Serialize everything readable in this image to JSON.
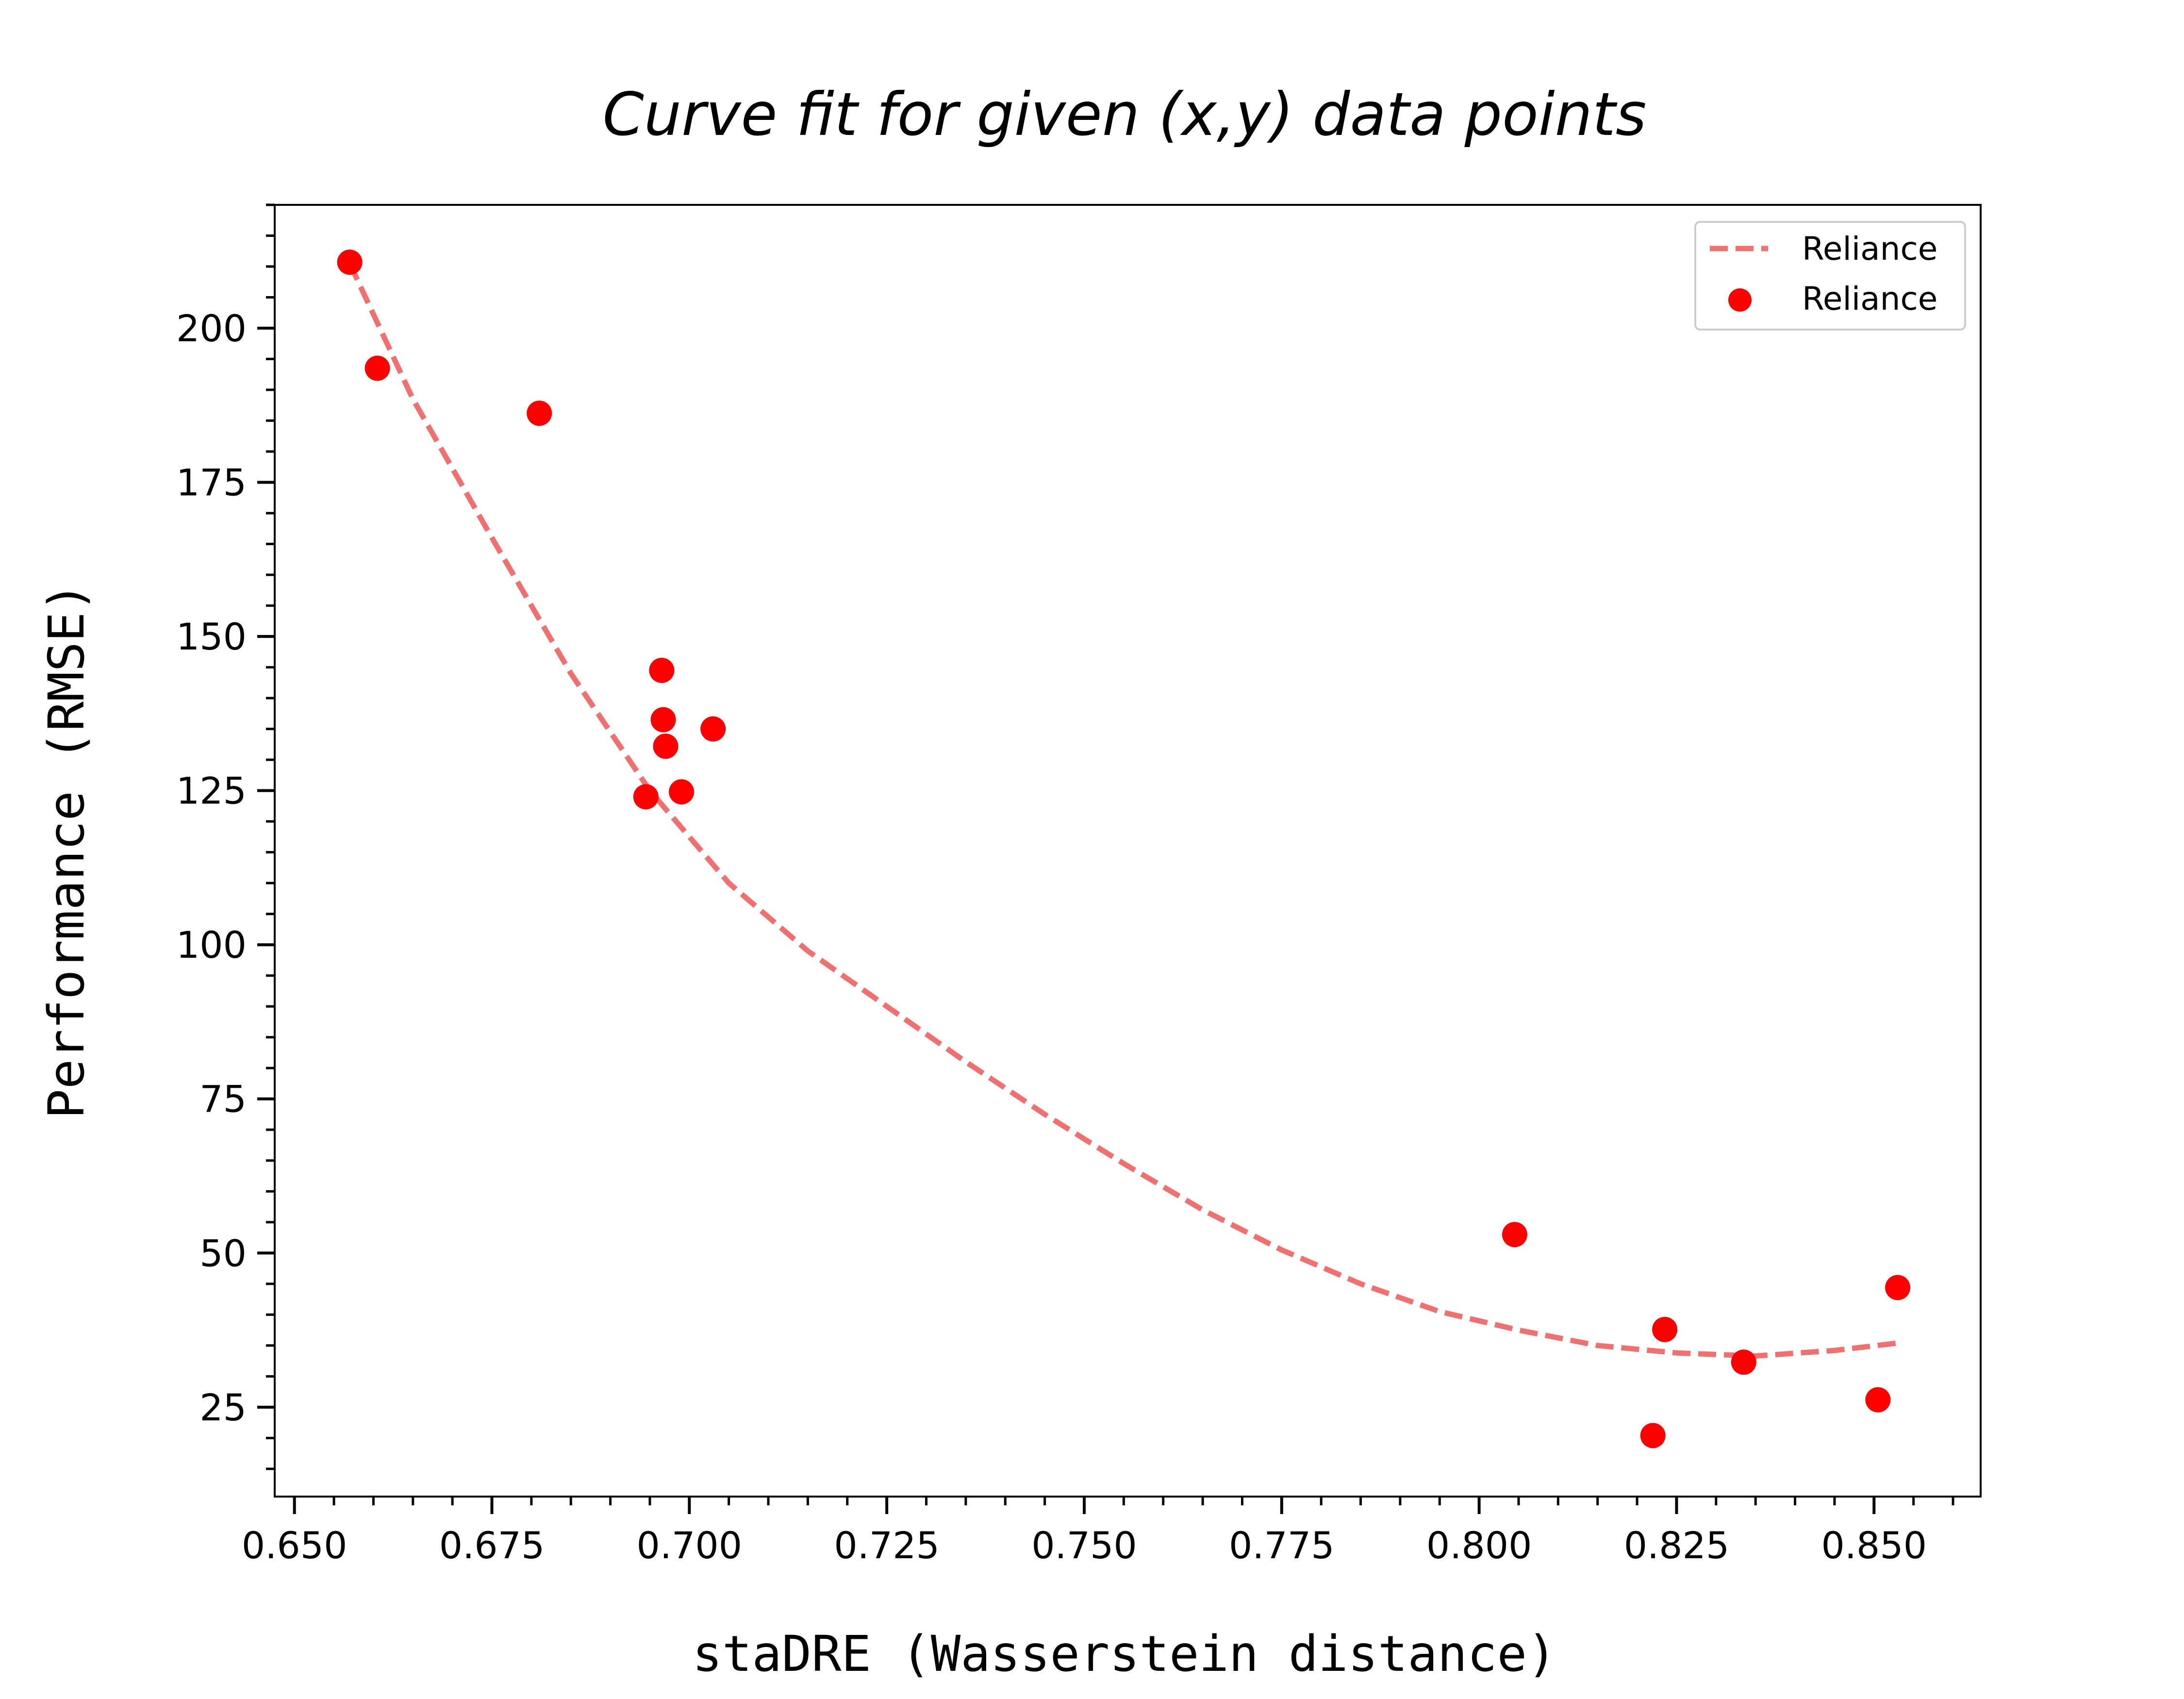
{
  "chart_data": {
    "type": "scatter",
    "title": "Curve fit for given (x,y) data points",
    "xlabel": "staDRE (Wasserstein distance)",
    "ylabel": "Performance (RMSE)",
    "xlim": [
      0.6475,
      0.8635
    ],
    "ylim": [
      10.5,
      220
    ],
    "x_ticks": [
      "0.650",
      "0.675",
      "0.700",
      "0.725",
      "0.750",
      "0.775",
      "0.800",
      "0.825",
      "0.850"
    ],
    "y_ticks": [
      "25",
      "50",
      "75",
      "100",
      "125",
      "150",
      "175",
      "200"
    ],
    "x_tick_values": [
      0.65,
      0.675,
      0.7,
      0.725,
      0.75,
      0.775,
      0.8,
      0.825,
      0.85
    ],
    "y_tick_values": [
      25,
      50,
      75,
      100,
      125,
      150,
      175,
      200
    ],
    "grid": false,
    "legend_position": "top-right",
    "series": [
      {
        "name": "Reliance",
        "kind": "fit-line",
        "style": "dashed",
        "color": "#f07070",
        "x": [
          0.657,
          0.665,
          0.675,
          0.685,
          0.695,
          0.705,
          0.715,
          0.725,
          0.735,
          0.745,
          0.755,
          0.765,
          0.775,
          0.785,
          0.795,
          0.805,
          0.815,
          0.825,
          0.835,
          0.845,
          0.853
        ],
        "y": [
          210.5,
          188.5,
          166,
          144,
          125,
          110,
          99,
          90,
          81,
          72.5,
          64.5,
          57,
          50.5,
          45,
          40.5,
          37.5,
          35,
          33.8,
          33.3,
          34.2,
          35.4
        ]
      },
      {
        "name": "Reliance",
        "kind": "points",
        "color": "#ff0000",
        "x": [
          0.657,
          0.6605,
          0.681,
          0.6945,
          0.6965,
          0.6967,
          0.697,
          0.699,
          0.703,
          0.8045,
          0.822,
          0.8235,
          0.8335,
          0.8505,
          0.853
        ],
        "y": [
          210.7,
          193.5,
          186.2,
          124,
          144.5,
          136.5,
          132.2,
          124.8,
          135,
          53,
          20.4,
          37.6,
          32.3,
          26.2,
          44.4
        ]
      }
    ]
  }
}
